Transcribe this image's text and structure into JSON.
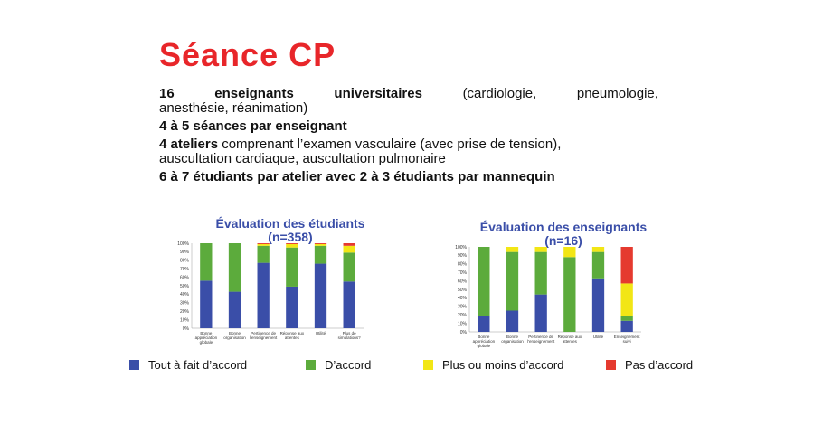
{
  "slide": {
    "title": "Séance CP",
    "line1": {
      "count": "16",
      "bold_words": [
        "enseignants",
        "universitaires"
      ],
      "paren_start": "(cardiologie,",
      "w2": "pneumologie,",
      "cont": "anesthésie, réanimation)"
    },
    "line2": "4 à 5 séances par enseignant",
    "line3": {
      "bold": "4 ateliers",
      "rest1": " comprenant l’examen vasculaire (avec prise de tension),",
      "rest2": "auscultation cardiaque, auscultation pulmonaire"
    },
    "line4": "6 à 7 étudiants par atelier avec 2 à 3 étudiants par mannequin"
  },
  "colors": {
    "title": "#e8262a",
    "chart_title": "#3a4ea8",
    "tout_a_fait": "#3a4ea8",
    "d_accord": "#5cab3c",
    "plus_ou_moins": "#f2e615",
    "pas_d_accord": "#e53a2f"
  },
  "legend": [
    {
      "label": "Tout à fait d’accord",
      "color": "#3a4ea8"
    },
    {
      "label": "D’accord",
      "color": "#5cab3c"
    },
    {
      "label": "Plus ou moins d’accord",
      "color": "#f2e615"
    },
    {
      "label": "Pas d’accord",
      "color": "#e53a2f"
    }
  ],
  "chart_data": [
    {
      "type": "bar",
      "stacked": true,
      "title": "Évaluation des étudiants",
      "subtitle": "(n=358)",
      "ylim": [
        0,
        100
      ],
      "ytick_labels": [
        "0%",
        "10%",
        "20%",
        "30%",
        "40%",
        "50%",
        "60%",
        "70%",
        "80%",
        "90%",
        "100%"
      ],
      "categories": [
        [
          "Bonne",
          "appréciation",
          "globale"
        ],
        [
          "Bonne",
          "organisation"
        ],
        [
          "Pertinence de",
          "l'enseignement"
        ],
        [
          "Réponse aux",
          "attentes"
        ],
        [
          "Utilité"
        ],
        [
          "Plus de",
          "simulations?"
        ]
      ],
      "series": [
        {
          "name": "Tout à fait d’accord",
          "values": [
            56,
            43,
            77,
            49,
            76,
            55
          ]
        },
        {
          "name": "D’accord",
          "values": [
            44,
            57,
            20,
            46,
            21,
            34
          ]
        },
        {
          "name": "Plus ou moins d’accord",
          "values": [
            0,
            0,
            2,
            4,
            2,
            8
          ]
        },
        {
          "name": "Pas d’accord",
          "values": [
            0,
            0,
            1,
            1,
            1,
            3
          ]
        }
      ]
    },
    {
      "type": "bar",
      "stacked": true,
      "title": "Évaluation des enseignants",
      "subtitle": "(n=16)",
      "ylim": [
        0,
        100
      ],
      "ytick_labels": [
        "0%",
        "10%",
        "20%",
        "30%",
        "40%",
        "50%",
        "60%",
        "70%",
        "80%",
        "90%",
        "100%"
      ],
      "categories": [
        [
          "Bonne",
          "appréciation",
          "globale"
        ],
        [
          "Bonne",
          "organisation"
        ],
        [
          "Pertinence de",
          "l'enseignement"
        ],
        [
          "Réponse aux",
          "attentes"
        ],
        [
          "Utilité"
        ],
        [
          "Enseignement",
          "suivi"
        ]
      ],
      "series": [
        {
          "name": "Tout à fait d’accord",
          "values": [
            19,
            25,
            44,
            0,
            63,
            13
          ]
        },
        {
          "name": "D’accord",
          "values": [
            81,
            69,
            50,
            88,
            31,
            6
          ]
        },
        {
          "name": "Plus ou moins d’accord",
          "values": [
            0,
            6,
            6,
            12,
            6,
            38
          ]
        },
        {
          "name": "Pas d’accord",
          "values": [
            0,
            0,
            0,
            0,
            0,
            43
          ]
        }
      ]
    }
  ]
}
